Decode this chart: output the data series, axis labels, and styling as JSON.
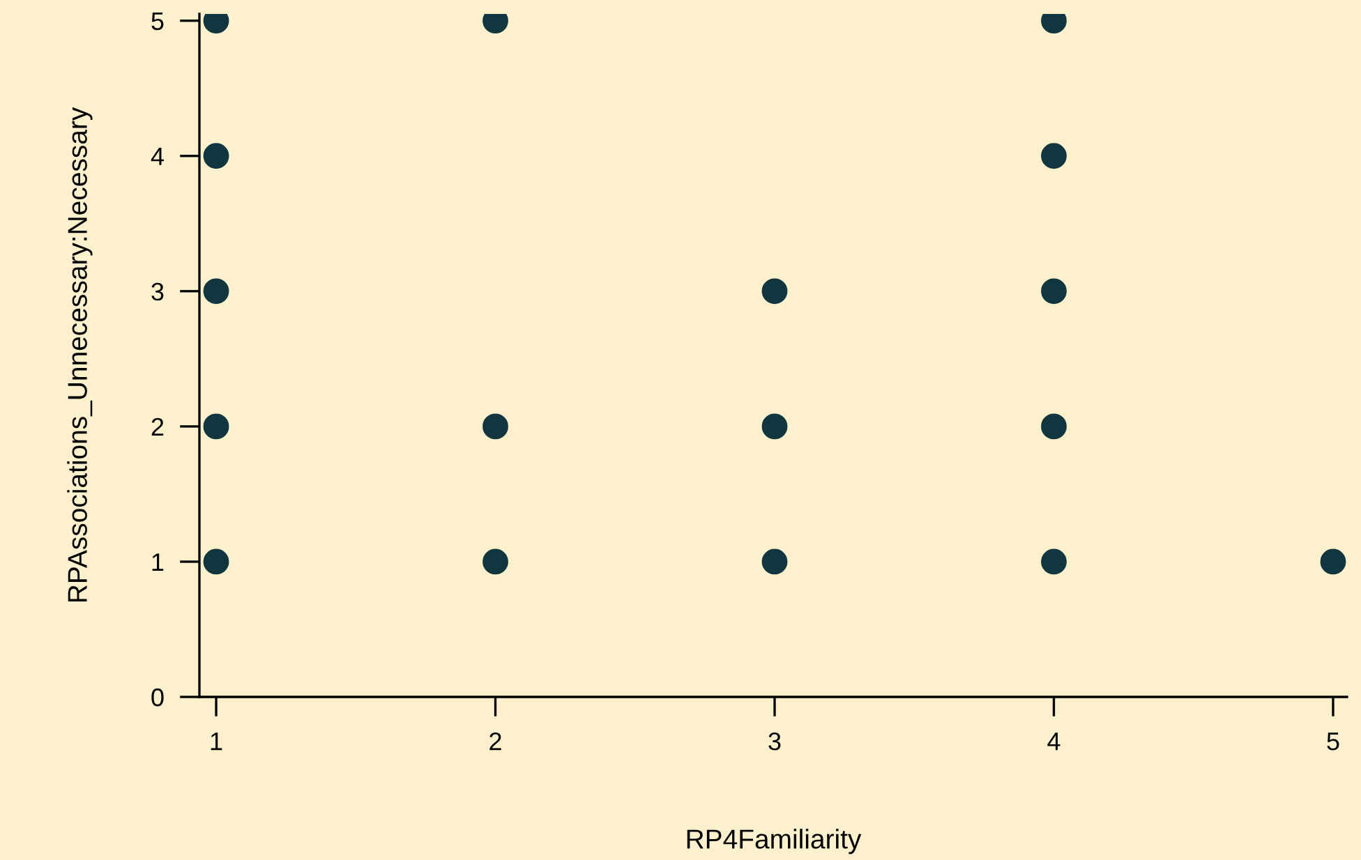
{
  "chart_data": {
    "type": "scatter",
    "xlabel": "RP4Familiarity",
    "ylabel": "RPAssociations_Unnecessary:Necessary",
    "series": [
      {
        "color": "#11363f",
        "x": [
          1,
          1,
          1,
          1,
          1,
          2,
          2,
          2,
          3,
          3,
          3,
          4,
          4,
          4,
          4,
          4,
          5
        ],
        "values": [
          5,
          4,
          3,
          2,
          1,
          5,
          2,
          1,
          3,
          2,
          1,
          5,
          4,
          3,
          2,
          1,
          1
        ]
      }
    ],
    "xlim": [
      0.94,
      5.05
    ],
    "ylim": [
      0,
      5.05
    ],
    "xticks": [
      1,
      2,
      3,
      4,
      5
    ],
    "yticks": [
      0,
      1,
      2,
      3,
      4,
      5
    ],
    "grid": false,
    "legend": false,
    "marker": "circle"
  }
}
